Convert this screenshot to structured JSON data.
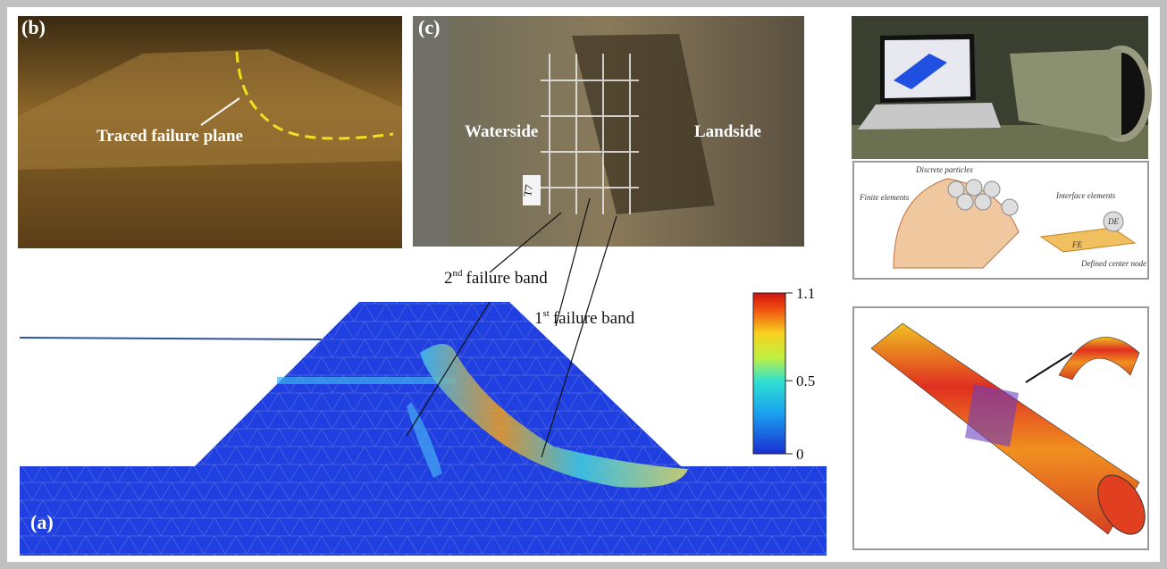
{
  "panel_b": {
    "label": "(b)",
    "annotation": "Traced failure plane"
  },
  "panel_c": {
    "label": "(c)",
    "left": "Waterside",
    "right": "Landside",
    "tag": "T7"
  },
  "panel_a": {
    "label": "(a)",
    "band_2": {
      "ordinal": "2",
      "suffix": "nd",
      "text": "failure band"
    },
    "band_1": {
      "ordinal": "1",
      "suffix": "st",
      "text": "failure band"
    },
    "colorbar": {
      "lim": [
        0,
        1.1
      ],
      "ticks": [
        0,
        0.5,
        1.1
      ]
    }
  },
  "diagram": {
    "particles": "Discrete particles",
    "finite": "Finite elements",
    "interface": "Interface elements",
    "de": "DE",
    "fe": "FE",
    "node": "Defined center node"
  }
}
